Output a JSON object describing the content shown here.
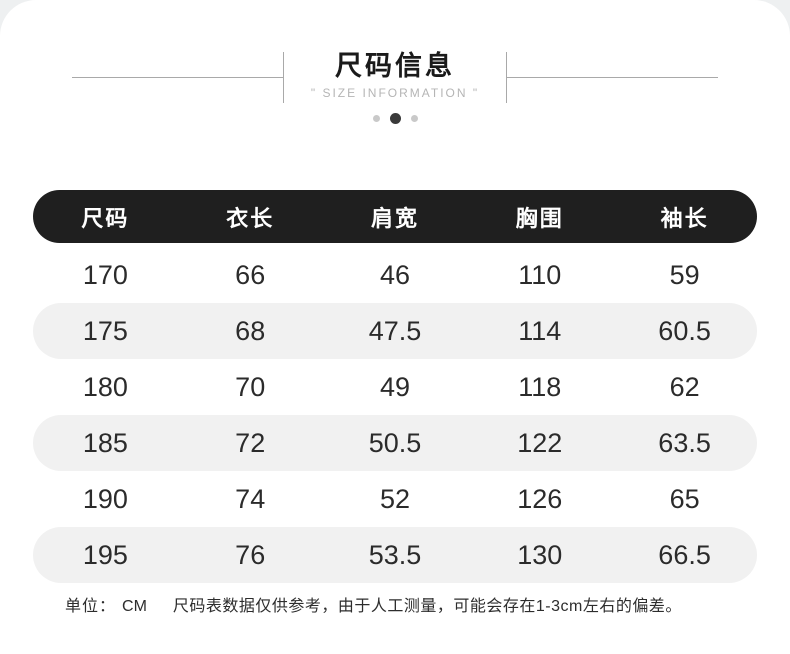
{
  "header": {
    "title": "尺码信息",
    "subtitle": "\" SIZE INFORMATION \""
  },
  "pagination": {
    "dot_count": 3,
    "active_index": 1
  },
  "chart_data": {
    "type": "table",
    "title": "尺码信息",
    "subtitle": "SIZE INFORMATION",
    "columns": [
      "尺码",
      "衣长",
      "肩宽",
      "胸围",
      "袖长"
    ],
    "rows": [
      [
        "170",
        "66",
        "46",
        "110",
        "59"
      ],
      [
        "175",
        "68",
        "47.5",
        "114",
        "60.5"
      ],
      [
        "180",
        "70",
        "49",
        "118",
        "62"
      ],
      [
        "185",
        "72",
        "50.5",
        "122",
        "63.5"
      ],
      [
        "190",
        "74",
        "52",
        "126",
        "65"
      ],
      [
        "195",
        "76",
        "53.5",
        "130",
        "66.5"
      ]
    ],
    "unit": "CM",
    "layout_hints": {
      "header_style": "dark pill bar",
      "alternating_rows": true
    }
  },
  "footer": {
    "unit_label": "单位：",
    "unit_value": "CM",
    "note": "尺码表数据仅供参考，由于人工测量，可能会存在1-3cm左右的偏差。"
  },
  "colors": {
    "page_background": "#eef0f1",
    "card_background": "#ffffff",
    "table_header_bar": "#1f1f1f",
    "table_header_text": "#ffffff",
    "row_alternate": "#f1f1f1",
    "number_text": "#2b2b2b",
    "title_text": "#1a1a1a",
    "subtitle_text": "#b5b5b5",
    "divider_line": "#a9a9a9",
    "dot_active": "#3a3a3a",
    "dot_inactive": "#c9c9c9"
  }
}
